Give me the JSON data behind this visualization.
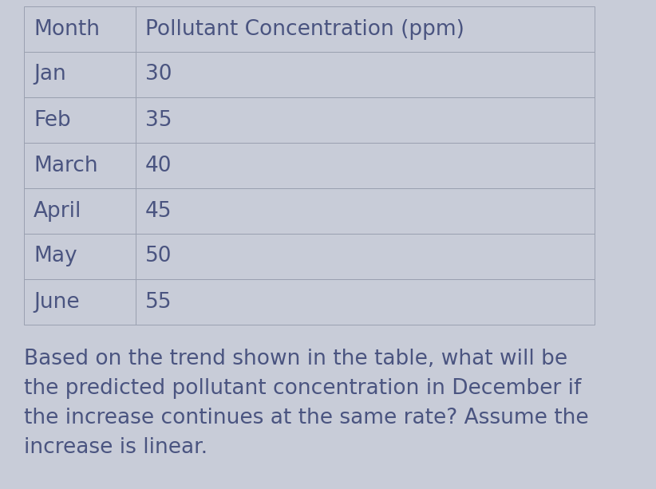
{
  "table_headers": [
    "Month",
    "Pollutant Concentration (ppm)"
  ],
  "table_rows": [
    [
      "Jan",
      "30"
    ],
    [
      "Feb",
      "35"
    ],
    [
      "March",
      "40"
    ],
    [
      "April",
      "45"
    ],
    [
      "May",
      "50"
    ],
    [
      "June",
      "55"
    ]
  ],
  "question_text": "Based on the trend shown in the table, what will be\nthe predicted pollutant concentration in December if\nthe increase continues at the same rate? Assume the\nincrease is linear.",
  "background_color": "#c8ccd8",
  "table_bg_color": "#c8ccd8",
  "cell_border_color": "#9aa0b0",
  "text_color": "#4a5480",
  "header_font_size": 19,
  "row_font_size": 19,
  "question_font_size": 19,
  "fig_width": 8.22,
  "fig_height": 6.13,
  "dpi": 100
}
